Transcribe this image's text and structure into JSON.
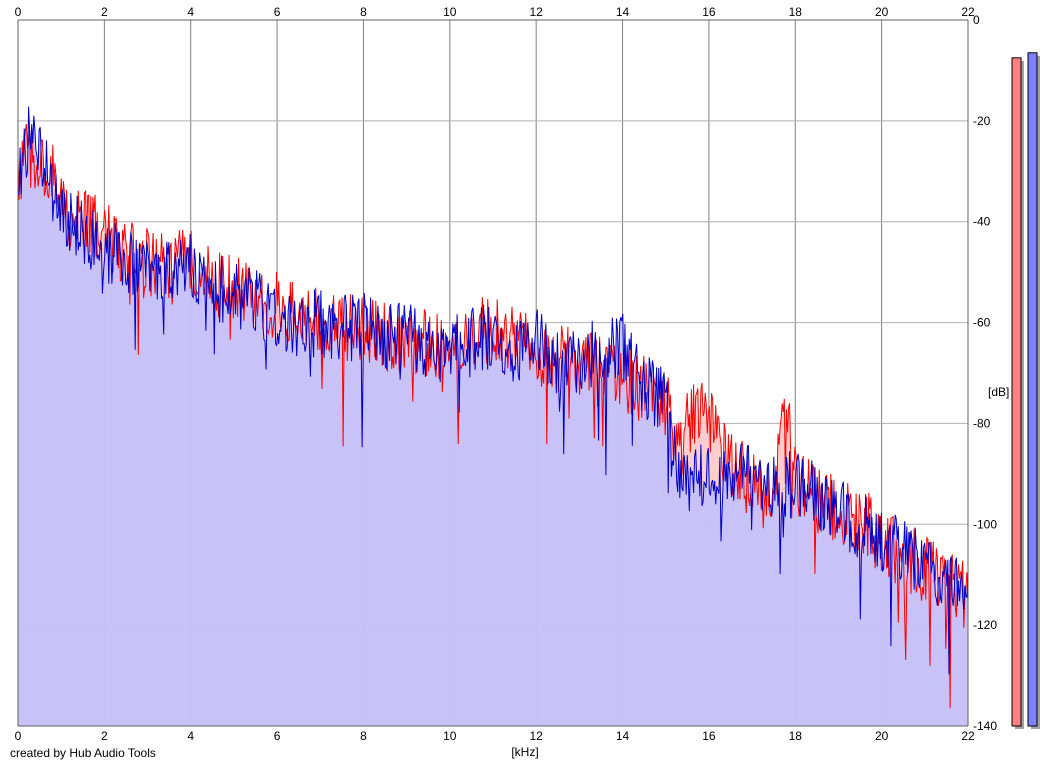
{
  "footer": {
    "credit": "created by Hub Audio Tools"
  },
  "chart_data": {
    "type": "area",
    "title": "",
    "xlabel": "[kHz]",
    "ylabel": "[dB]",
    "xlim": [
      0,
      22
    ],
    "ylim": [
      -140,
      0
    ],
    "x_ticks": [
      "0",
      "2",
      "4",
      "6",
      "8",
      "10",
      "12",
      "14",
      "16",
      "18",
      "20",
      "22"
    ],
    "y_ticks": [
      "0",
      "-20",
      "-40",
      "-60",
      "-80",
      "-100",
      "-120",
      "-140"
    ],
    "grid": true,
    "x_ticks_top": true,
    "y_axis_side": "right",
    "series": [
      {
        "color": "#ff0000",
        "fill": "#ffc0c0",
        "x": [
          0,
          0.25,
          0.5,
          0.75,
          1,
          1.5,
          2,
          2.5,
          3,
          3.5,
          4,
          4.5,
          5,
          5.5,
          6,
          6.5,
          7,
          7.5,
          8,
          8.5,
          9,
          9.5,
          10,
          10.5,
          11,
          11.5,
          12,
          12.5,
          13,
          13.5,
          14,
          14.5,
          15,
          15.25,
          15.5,
          15.75,
          16,
          16.5,
          17,
          17.5,
          17.85,
          18,
          18.5,
          19,
          19.5,
          20,
          20.5,
          21,
          21.5,
          22
        ],
        "y": [
          -32,
          -26,
          -30,
          -28,
          -38,
          -40,
          -42,
          -46,
          -48,
          -50,
          -47,
          -52,
          -53,
          -55,
          -57,
          -59,
          -60,
          -61,
          -62,
          -63,
          -63,
          -64,
          -65,
          -63,
          -61,
          -64,
          -66,
          -67,
          -68,
          -69,
          -71,
          -73,
          -76,
          -82,
          -80,
          -76,
          -80,
          -88,
          -92,
          -92,
          -76,
          -92,
          -95,
          -97,
          -99,
          -103,
          -106,
          -109,
          -112,
          -114
        ]
      },
      {
        "color": "#0000c8",
        "fill": "#c0c0ff",
        "x": [
          0,
          0.25,
          0.5,
          0.75,
          1,
          1.5,
          2,
          2.5,
          3,
          3.5,
          4,
          4.5,
          5,
          5.5,
          6,
          6.5,
          7,
          7.5,
          8,
          8.5,
          9,
          9.5,
          10,
          10.5,
          11,
          11.5,
          12,
          12.5,
          13,
          13.5,
          14,
          14.5,
          15,
          15.25,
          15.5,
          15.75,
          16,
          16.5,
          17,
          17.5,
          18,
          18.5,
          19,
          19.5,
          20,
          20.5,
          21,
          21.5,
          22
        ],
        "y": [
          -30,
          -23,
          -28,
          -32,
          -40,
          -42,
          -45,
          -47,
          -49,
          -51,
          -49,
          -53,
          -54,
          -56,
          -58,
          -60,
          -60,
          -61,
          -61,
          -62,
          -63,
          -64,
          -66,
          -64,
          -62,
          -65,
          -63,
          -68,
          -67,
          -66,
          -65,
          -72,
          -76,
          -90,
          -92,
          -89,
          -92,
          -91,
          -90,
          -92,
          -92,
          -95,
          -98,
          -100,
          -103,
          -106,
          -108,
          -110,
          -114
        ]
      }
    ],
    "level_meters": [
      {
        "color": "#ff8080",
        "level_db": -7.5
      },
      {
        "color": "#8080ff",
        "level_db": -6.5
      }
    ]
  }
}
